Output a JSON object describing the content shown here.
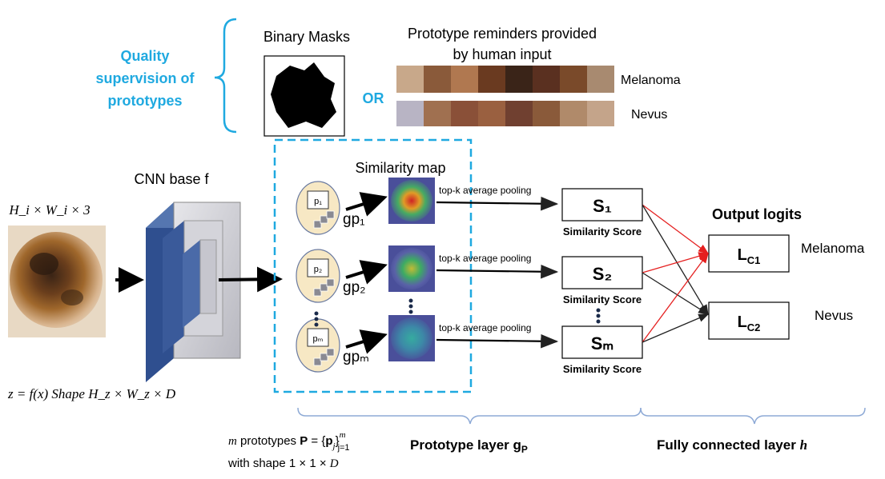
{
  "quality": {
    "line1": "Quality",
    "line2": "supervision of",
    "line3": "prototypes",
    "color": "#1fa9e0"
  },
  "masks": {
    "title": "Binary Masks",
    "or": "OR"
  },
  "reminders": {
    "title_line1": "Prototype reminders provided",
    "title_line2": "by human input",
    "melanoma": "Melanoma",
    "nevus": "Nevus"
  },
  "input": {
    "shape_label": "H_i × W_i × 3"
  },
  "cnn": {
    "title": "CNN base f",
    "shape_label": "z = f(x) Shape H_z × W_z × D"
  },
  "similarity_map": {
    "title": "Similarity map"
  },
  "prototypes": [
    {
      "label": "p₁",
      "g": "gp₁",
      "pool": "top-k average pooling",
      "score": "S₁"
    },
    {
      "label": "p₂",
      "g": "gp₂",
      "pool": "top-k average pooling",
      "score": "S₂"
    },
    {
      "label": "pₘ",
      "g": "gpₘ",
      "pool": "top-k average pooling",
      "score": "Sₘ"
    }
  ],
  "similarity_score_label": "Similarity  Score",
  "output": {
    "title": "Output logits",
    "logit1": "L_C1",
    "logit2": "L_C2",
    "class1": "Melanoma",
    "class2": "Nevus"
  },
  "bottom": {
    "prototypes_line1": "m prototypes P = {p_j}_{j=1}^m",
    "prototypes_line2": "with shape 1 × 1 × D",
    "prototype_layer": "Prototype layer g_P",
    "fc_layer": "Fully connected layer h"
  },
  "colors": {
    "accent": "#1fa9e0",
    "red_edge": "#e52020",
    "black_edge": "#222222",
    "brace": "#8eaad6",
    "proto_fill": "#f7e8c4",
    "cnn_blue": "#2f4f8f"
  }
}
